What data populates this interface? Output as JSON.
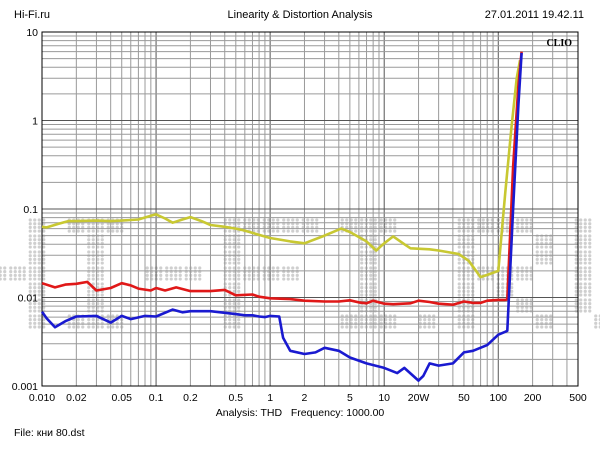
{
  "header": {
    "left": "Hi-Fi.ru",
    "center": "Linearity & Distortion Analysis",
    "right": "27.01.2011 19.42.11"
  },
  "brand_label": "CLIO",
  "watermark_text": "HI-FI.RU",
  "footer": {
    "analysis_prefix": "Analysis:",
    "analysis_value": "THD",
    "frequency_prefix": "Frequency:",
    "frequency_value": "1000.00",
    "file_prefix": "File:",
    "file_value": "кни 80.dst"
  },
  "colors": {
    "yellow": "#c8c832",
    "red": "#e01818",
    "blue": "#1a1ad0",
    "grid": "#9a9a9a",
    "watermark": "#cfcfcf"
  },
  "chart_data": {
    "type": "line",
    "x_scale": "log",
    "y_scale": "log",
    "xlim": [
      0.01,
      500
    ],
    "ylim": [
      0.001,
      10
    ],
    "grid": true,
    "x_ticks": [
      {
        "value": 0.01,
        "label": "0.010"
      },
      {
        "value": 0.02,
        "label": "0.02"
      },
      {
        "value": 0.05,
        "label": "0.05"
      },
      {
        "value": 0.1,
        "label": "0.1"
      },
      {
        "value": 0.2,
        "label": "0.2"
      },
      {
        "value": 0.5,
        "label": "0.5"
      },
      {
        "value": 1,
        "label": "1"
      },
      {
        "value": 2,
        "label": "2"
      },
      {
        "value": 5,
        "label": "5"
      },
      {
        "value": 10,
        "label": "10"
      },
      {
        "value": 20,
        "label": "20W"
      },
      {
        "value": 50,
        "label": "50"
      },
      {
        "value": 100,
        "label": "100"
      },
      {
        "value": 200,
        "label": "200"
      },
      {
        "value": 500,
        "label": "500"
      }
    ],
    "y_ticks": [
      {
        "value": 10,
        "label": "10"
      },
      {
        "value": 1,
        "label": "1"
      },
      {
        "value": 0.1,
        "label": "0.1"
      },
      {
        "value": 0.01,
        "label": "0.01"
      },
      {
        "value": 0.001,
        "label": "0.001"
      }
    ],
    "series": [
      {
        "color": "yellow",
        "points": [
          [
            0.01,
            0.063
          ],
          [
            0.011,
            0.062
          ],
          [
            0.014,
            0.068
          ],
          [
            0.017,
            0.073
          ],
          [
            0.02,
            0.073
          ],
          [
            0.03,
            0.074
          ],
          [
            0.04,
            0.073
          ],
          [
            0.05,
            0.074
          ],
          [
            0.07,
            0.076
          ],
          [
            0.09,
            0.084
          ],
          [
            0.1,
            0.087
          ],
          [
            0.12,
            0.078
          ],
          [
            0.14,
            0.07
          ],
          [
            0.17,
            0.076
          ],
          [
            0.2,
            0.081
          ],
          [
            0.25,
            0.073
          ],
          [
            0.3,
            0.066
          ],
          [
            0.4,
            0.063
          ],
          [
            0.5,
            0.06
          ],
          [
            0.6,
            0.057
          ],
          [
            0.8,
            0.051
          ],
          [
            1,
            0.047
          ],
          [
            1.5,
            0.043
          ],
          [
            2,
            0.041
          ],
          [
            3,
            0.05
          ],
          [
            4.2,
            0.06
          ],
          [
            5,
            0.055
          ],
          [
            7,
            0.043
          ],
          [
            8.5,
            0.034
          ],
          [
            10,
            0.041
          ],
          [
            12,
            0.049
          ],
          [
            15,
            0.04
          ],
          [
            17,
            0.036
          ],
          [
            25,
            0.035
          ],
          [
            30,
            0.034
          ],
          [
            45,
            0.031
          ],
          [
            55,
            0.026
          ],
          [
            70,
            0.017
          ],
          [
            80,
            0.018
          ],
          [
            100,
            0.02
          ],
          [
            115,
            0.15
          ],
          [
            130,
            0.8
          ],
          [
            145,
            3.0
          ],
          [
            155,
            4.8
          ]
        ]
      },
      {
        "color": "red",
        "points": [
          [
            0.01,
            0.0145
          ],
          [
            0.013,
            0.013
          ],
          [
            0.016,
            0.014
          ],
          [
            0.02,
            0.0143
          ],
          [
            0.025,
            0.015
          ],
          [
            0.03,
            0.012
          ],
          [
            0.04,
            0.0128
          ],
          [
            0.05,
            0.0145
          ],
          [
            0.06,
            0.0137
          ],
          [
            0.07,
            0.0126
          ],
          [
            0.09,
            0.012
          ],
          [
            0.1,
            0.0128
          ],
          [
            0.12,
            0.012
          ],
          [
            0.15,
            0.013
          ],
          [
            0.2,
            0.0118
          ],
          [
            0.3,
            0.0118
          ],
          [
            0.4,
            0.0122
          ],
          [
            0.5,
            0.0106
          ],
          [
            0.7,
            0.0108
          ],
          [
            0.8,
            0.0102
          ],
          [
            1,
            0.0098
          ],
          [
            1.5,
            0.0096
          ],
          [
            2,
            0.0092
          ],
          [
            3,
            0.009
          ],
          [
            4,
            0.009
          ],
          [
            5,
            0.0093
          ],
          [
            6,
            0.0088
          ],
          [
            7,
            0.0086
          ],
          [
            8,
            0.0092
          ],
          [
            10,
            0.0085
          ],
          [
            12,
            0.0084
          ],
          [
            17,
            0.0086
          ],
          [
            20,
            0.0092
          ],
          [
            25,
            0.0089
          ],
          [
            30,
            0.0085
          ],
          [
            40,
            0.0083
          ],
          [
            50,
            0.009
          ],
          [
            60,
            0.0087
          ],
          [
            70,
            0.0087
          ],
          [
            80,
            0.0092
          ],
          [
            100,
            0.0094
          ],
          [
            115,
            0.0094
          ],
          [
            120,
            0.0095
          ],
          [
            135,
            0.3
          ],
          [
            150,
            2.5
          ],
          [
            160,
            6.0
          ]
        ]
      },
      {
        "color": "blue",
        "points": [
          [
            0.01,
            0.0069
          ],
          [
            0.011,
            0.0058
          ],
          [
            0.013,
            0.0046
          ],
          [
            0.016,
            0.0054
          ],
          [
            0.02,
            0.0061
          ],
          [
            0.03,
            0.0062
          ],
          [
            0.04,
            0.0052
          ],
          [
            0.05,
            0.0062
          ],
          [
            0.06,
            0.0057
          ],
          [
            0.08,
            0.0062
          ],
          [
            0.1,
            0.0061
          ],
          [
            0.14,
            0.0073
          ],
          [
            0.17,
            0.0068
          ],
          [
            0.2,
            0.007
          ],
          [
            0.3,
            0.007
          ],
          [
            0.5,
            0.0065
          ],
          [
            0.6,
            0.0063
          ],
          [
            0.7,
            0.0063
          ],
          [
            0.8,
            0.0061
          ],
          [
            0.9,
            0.006
          ],
          [
            1,
            0.0062
          ],
          [
            1.2,
            0.0061
          ],
          [
            1.3,
            0.0035
          ],
          [
            1.5,
            0.0025
          ],
          [
            2,
            0.0023
          ],
          [
            2.5,
            0.0024
          ],
          [
            3,
            0.0027
          ],
          [
            4,
            0.0025
          ],
          [
            5,
            0.0021
          ],
          [
            7,
            0.0018
          ],
          [
            10,
            0.0016
          ],
          [
            13,
            0.0014
          ],
          [
            15,
            0.0016
          ],
          [
            20,
            0.00115
          ],
          [
            22,
            0.0013
          ],
          [
            25,
            0.0018
          ],
          [
            30,
            0.0017
          ],
          [
            40,
            0.0018
          ],
          [
            50,
            0.0024
          ],
          [
            60,
            0.0025
          ],
          [
            80,
            0.0029
          ],
          [
            100,
            0.0038
          ],
          [
            115,
            0.0041
          ],
          [
            120,
            0.0042
          ],
          [
            135,
            0.1
          ],
          [
            150,
            1.5
          ],
          [
            160,
            5.8
          ]
        ]
      }
    ]
  }
}
